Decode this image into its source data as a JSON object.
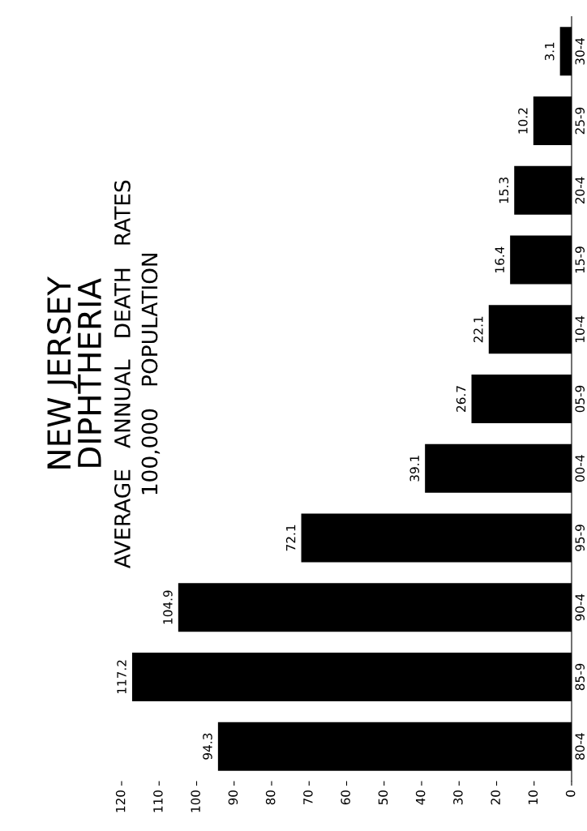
{
  "chart_data": {
    "type": "bar",
    "orientation": "horizontal",
    "title": "NEW JERSEY\nDIPHTHERIA",
    "subtitle": "AVERAGE   ANNUAL   DEATH   RATES\n100,000   POPULATION",
    "categories": [
      "30-4",
      "25-9",
      "20-4",
      "15-9",
      "10-4",
      "05-9",
      "00-4",
      "95-9",
      "90-4",
      "85-9",
      "80-4"
    ],
    "values": [
      3.1,
      10.2,
      15.3,
      16.4,
      22.1,
      26.7,
      39.1,
      72.1,
      104.9,
      117.2,
      94.3
    ],
    "color": "#000000",
    "data_labels": true,
    "xlim": [
      120,
      0
    ],
    "xticks": [
      0,
      10,
      20,
      30,
      40,
      50,
      60,
      70,
      80,
      90,
      100,
      110,
      120
    ],
    "grid": false
  }
}
